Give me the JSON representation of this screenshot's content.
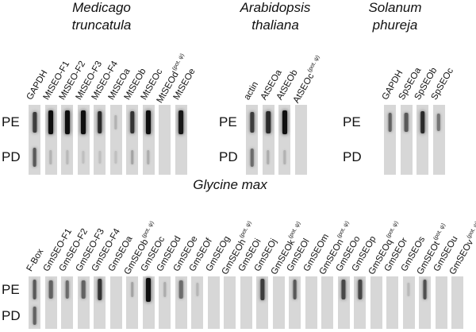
{
  "panels": [
    {
      "title_lines": [
        "Medicago",
        "truncatula"
      ],
      "lanes": [
        {
          "gene": "GAPDH",
          "note": "",
          "PE": 0.75,
          "PD": 0.6
        },
        {
          "gene": "MtSEO-F1",
          "note": "",
          "PE": 1.0,
          "PD": 0.12
        },
        {
          "gene": "MtSEO-F2",
          "note": "",
          "PE": 1.0,
          "PD": 0.08
        },
        {
          "gene": "MtSEO-F3",
          "note": "",
          "PE": 1.0,
          "PD": 0.05
        },
        {
          "gene": "MtSEO-F4",
          "note": "",
          "PE": 0.85,
          "PD": 0.05
        },
        {
          "gene": "MtSEOa",
          "note": "",
          "PE": 0.12,
          "PD": 0.05
        },
        {
          "gene": "MtSEOb",
          "note": "",
          "PE": 0.8,
          "PD": 0.2
        },
        {
          "gene": "MtSEOc",
          "note": "",
          "PE": 1.0,
          "PD": 0.15
        },
        {
          "gene": "MtSEOd",
          "note": "(pot. ψ)",
          "PE": 0.0,
          "PD": 0.0
        },
        {
          "gene": "MtSEOe",
          "note": "",
          "PE": 0.95,
          "PD": 0.0
        }
      ]
    },
    {
      "title_lines": [
        "Arabidopsis",
        "thaliana"
      ],
      "lanes": [
        {
          "gene": "actin",
          "note": "",
          "PE": 0.75,
          "PD": 0.5
        },
        {
          "gene": "AtSEOa",
          "note": "",
          "PE": 0.85,
          "PD": 0.15
        },
        {
          "gene": "AtSEOb",
          "note": "",
          "PE": 1.0,
          "PD": 0.12
        },
        {
          "gene": "AtSEOc",
          "note": "(pot. ψ)",
          "PE": 0.0,
          "PD": 0.0
        }
      ]
    },
    {
      "title_lines": [
        "Solanum",
        "phureja"
      ],
      "lanes": [
        {
          "gene": "GAPDH",
          "note": "",
          "PE": 0.55,
          "PD": 0.0
        },
        {
          "gene": "SpSEOa",
          "note": "",
          "PE": 0.6,
          "PD": 0.0
        },
        {
          "gene": "SpSEOb",
          "note": "",
          "PE": 0.85,
          "PD": 0.0
        },
        {
          "gene": "SpSEOc",
          "note": "",
          "PE": 0.45,
          "PD": 0.0
        }
      ]
    },
    {
      "title_lines": [
        "Glycine max"
      ],
      "lanes": [
        {
          "gene": "F-Box",
          "note": "",
          "PE": 0.6,
          "PD": 0.55
        },
        {
          "gene": "GmSEO-F1",
          "note": "",
          "PE": 0.55,
          "PD": 0.0
        },
        {
          "gene": "GmSEO-F2",
          "note": "",
          "PE": 0.5,
          "PD": 0.0
        },
        {
          "gene": "GmSEO-F3",
          "note": "",
          "PE": 0.55,
          "PD": 0.0
        },
        {
          "gene": "GmSEO-F4",
          "note": "",
          "PE": 0.8,
          "PD": 0.0
        },
        {
          "gene": "GmSEOa",
          "note": "",
          "PE": 0.0,
          "PD": 0.0
        },
        {
          "gene": "GmSEOb",
          "note": "(pot. ψ)",
          "PE": 0.2,
          "PD": 0.0
        },
        {
          "gene": "GmSEOc",
          "note": "",
          "PE": 1.0,
          "PD": 0.0
        },
        {
          "gene": "GmSEOd",
          "note": "",
          "PE": 0.15,
          "PD": 0.0
        },
        {
          "gene": "GmSEOe",
          "note": "",
          "PE": 0.5,
          "PD": 0.0
        },
        {
          "gene": "GmSEOf",
          "note": "",
          "PE": 0.1,
          "PD": 0.0
        },
        {
          "gene": "GmSEOg",
          "note": "",
          "PE": 0.0,
          "PD": 0.0
        },
        {
          "gene": "GmSEOh",
          "note": "(pot. ψ)",
          "PE": 0.0,
          "PD": 0.0
        },
        {
          "gene": "GmSEOi",
          "note": "",
          "PE": 0.0,
          "PD": 0.0
        },
        {
          "gene": "GmSEOj",
          "note": "",
          "PE": 0.75,
          "PD": 0.0
        },
        {
          "gene": "GmSEOk",
          "note": "(pot. ψ)",
          "PE": 0.0,
          "PD": 0.0
        },
        {
          "gene": "GmSEOl",
          "note": "",
          "PE": 0.6,
          "PD": 0.0
        },
        {
          "gene": "GmSEOm",
          "note": "",
          "PE": 0.0,
          "PD": 0.0
        },
        {
          "gene": "GmSEOn",
          "note": "(pot. ψ)",
          "PE": 0.0,
          "PD": 0.0
        },
        {
          "gene": "GmSEOo",
          "note": "",
          "PE": 0.7,
          "PD": 0.0
        },
        {
          "gene": "GmSEOp",
          "note": "",
          "PE": 0.7,
          "PD": 0.0
        },
        {
          "gene": "GmSEOq",
          "note": "(pot. ψ)",
          "PE": 0.0,
          "PD": 0.0
        },
        {
          "gene": "GmSEOr",
          "note": "",
          "PE": 0.0,
          "PD": 0.0
        },
        {
          "gene": "GmSEOs",
          "note": "",
          "PE": 0.08,
          "PD": 0.0
        },
        {
          "gene": "GmSEOt",
          "note": "(pot. ψ)",
          "PE": 0.65,
          "PD": 0.0
        },
        {
          "gene": "GmSEOu",
          "note": "",
          "PE": 0.0,
          "PD": 0.0
        },
        {
          "gene": "GmSEOv",
          "note": "(pot. ψ)",
          "PE": 0.0,
          "PD": 0.0
        }
      ]
    }
  ],
  "row_labels": [
    "PE",
    "PD"
  ]
}
